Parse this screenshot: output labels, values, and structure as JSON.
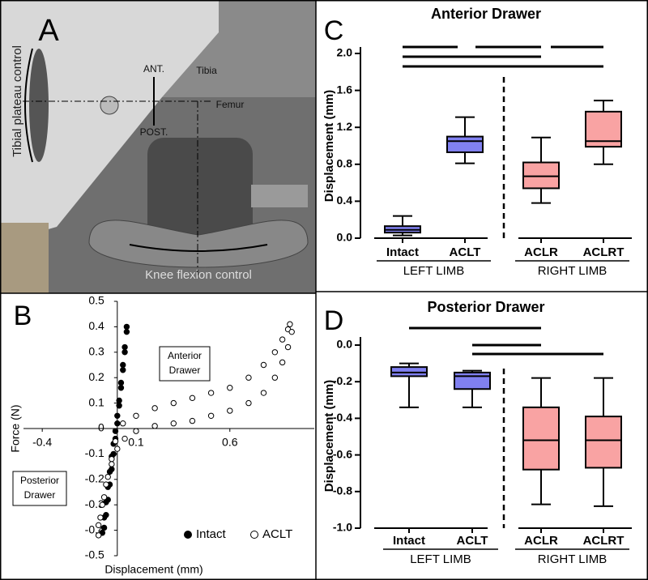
{
  "photo": {
    "panel_label": "A",
    "labels": {
      "plateau": "Tibial plateau control",
      "ant": "ANT.",
      "post": "POST.",
      "tibia": "Tibia",
      "femur": "Femur",
      "flexion": "Knee flexion control"
    }
  },
  "chart_data": [
    {
      "type": "scatter",
      "panel_label": "B",
      "xlabel": "Displacement (mm)",
      "ylabel": "Force (N)",
      "xlim": [
        -0.5,
        1.05
      ],
      "ylim": [
        -0.5,
        0.5
      ],
      "xticks": [
        -0.4,
        0.1,
        0.6
      ],
      "yticks": [
        0.5,
        0.4,
        0.3,
        0.2,
        0.1,
        0,
        -0.1,
        -0.2,
        -0.3,
        -0.4,
        -0.5
      ],
      "annotations": [
        [
          "Anterior",
          "Drawer"
        ],
        [
          "Posterior",
          "Drawer"
        ]
      ],
      "legend": "lower right",
      "series": [
        {
          "name": "Intact",
          "color": "#000000",
          "marker": "filled",
          "x": [
            -0.08,
            -0.07,
            -0.06,
            -0.05,
            -0.04,
            -0.03,
            -0.02,
            -0.01,
            0,
            0.01,
            0.02,
            0.03,
            0.04,
            0.05,
            0.05,
            0.04,
            0.03,
            0.02,
            0.01,
            0,
            -0.01,
            -0.02,
            -0.03,
            -0.04,
            -0.05,
            -0.06,
            -0.07,
            -0.08
          ],
          "values": [
            -0.41,
            -0.35,
            -0.29,
            -0.23,
            -0.17,
            -0.11,
            -0.06,
            -0.01,
            0.05,
            0.11,
            0.18,
            0.25,
            0.32,
            0.4,
            0.38,
            0.3,
            0.23,
            0.16,
            0.09,
            0.02,
            -0.04,
            -0.1,
            -0.16,
            -0.22,
            -0.28,
            -0.34,
            -0.39,
            -0.41
          ]
        },
        {
          "name": "ACLT",
          "color": "#000000",
          "marker": "open",
          "x": [
            -0.1,
            -0.09,
            -0.07,
            -0.05,
            -0.03,
            -0.01,
            0.03,
            0.1,
            0.2,
            0.3,
            0.4,
            0.5,
            0.6,
            0.7,
            0.78,
            0.84,
            0.88,
            0.91,
            0.92,
            0.93,
            0.91,
            0.88,
            0.84,
            0.78,
            0.7,
            0.6,
            0.5,
            0.4,
            0.3,
            0.2,
            0.1,
            0.04,
            0,
            -0.03,
            -0.06,
            -0.08,
            -0.1
          ],
          "values": [
            -0.42,
            -0.35,
            -0.27,
            -0.19,
            -0.12,
            -0.05,
            0.02,
            0.05,
            0.08,
            0.1,
            0.12,
            0.14,
            0.16,
            0.2,
            0.25,
            0.3,
            0.35,
            0.39,
            0.41,
            0.38,
            0.32,
            0.26,
            0.2,
            0.14,
            0.1,
            0.07,
            0.05,
            0.03,
            0.02,
            0.01,
            -0.01,
            -0.04,
            -0.08,
            -0.14,
            -0.22,
            -0.3,
            -0.38
          ]
        }
      ]
    },
    {
      "type": "box",
      "panel_label": "C",
      "title": "Anterior Drawer",
      "ylabel": "Displacement (mm)",
      "categories": [
        "Intact",
        "ACLT",
        "ACLR",
        "ACLRT"
      ],
      "groups": [
        "LEFT LIMB",
        "RIGHT LIMB"
      ],
      "colors": [
        "#8080f0",
        "#8080f0",
        "#f9a3a3",
        "#f9a3a3"
      ],
      "boxes": [
        {
          "min": 0.03,
          "q1": 0.06,
          "median": 0.09,
          "q3": 0.13,
          "max": 0.24
        },
        {
          "min": 0.81,
          "q1": 0.93,
          "median": 1.05,
          "q3": 1.1,
          "max": 1.31
        },
        {
          "min": 0.38,
          "q1": 0.54,
          "median": 0.67,
          "q3": 0.82,
          "max": 1.09
        },
        {
          "min": 0.8,
          "q1": 0.99,
          "median": 1.05,
          "q3": 1.37,
          "max": 1.49
        }
      ],
      "ylim": [
        0,
        2.0
      ],
      "yticks": [
        {
          "value": 0,
          "label": "0.0"
        },
        0.4,
        0.8,
        1.2,
        1.6,
        {
          "value": 2,
          "label": "2.0"
        }
      ]
    },
    {
      "type": "box",
      "panel_label": "D",
      "title": "Posterior Drawer",
      "ylabel": "Displacement (mm)",
      "categories": [
        "Intact",
        "ACLT",
        "ACLR",
        "ACLRT"
      ],
      "groups": [
        "LEFT LIMB",
        "RIGHT LIMB"
      ],
      "colors": [
        "#8080f0",
        "#8080f0",
        "#f9a3a3",
        "#f9a3a3"
      ],
      "boxes": [
        {
          "min": -0.34,
          "q1": -0.17,
          "median": -0.15,
          "q3": -0.12,
          "max": -0.1
        },
        {
          "min": -0.34,
          "q1": -0.24,
          "median": -0.17,
          "q3": -0.15,
          "max": -0.14
        },
        {
          "min": -0.87,
          "q1": -0.68,
          "median": -0.52,
          "q3": -0.34,
          "max": -0.18
        },
        {
          "min": -0.88,
          "q1": -0.67,
          "median": -0.52,
          "q3": -0.39,
          "max": -0.18
        }
      ],
      "ylim": [
        -1.0,
        0.0
      ],
      "yticks": [
        {
          "value": -1,
          "label": "-1.0"
        },
        -0.8,
        -0.6,
        -0.4,
        -0.2,
        {
          "value": 0,
          "label": "0.0"
        }
      ]
    }
  ]
}
